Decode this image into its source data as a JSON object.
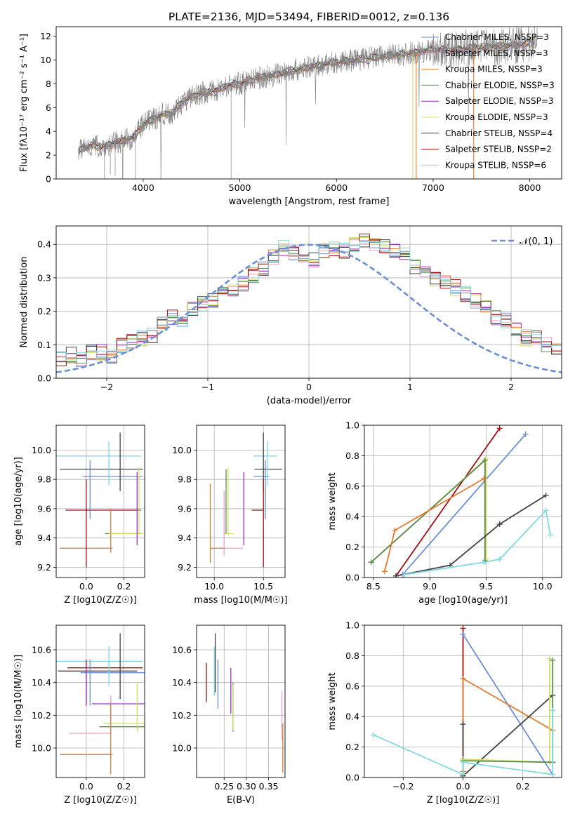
{
  "figure": {
    "title": "PLATE=2136, MJD=53494, FIBERID=0012, z=0.136"
  },
  "colors": {
    "Chabrier MILES": "#6a8fd6",
    "Salpeter MILES": "#e8a0c8",
    "Kroupa MILES": "#e07b30",
    "Chabrier ELODIE": "#5a8a50",
    "Salpeter ELODIE": "#9b30c0",
    "Kroupa ELODIE": "#d4e060",
    "Chabrier STELIB": "#444444",
    "Salpeter STELIB": "#a01010",
    "Kroupa STELIB": "#80d8e0",
    "data": "#808080",
    "normal": "#6a8fd6"
  },
  "chart_data": [
    {
      "id": "spectrum",
      "type": "line",
      "xlabel": "wavelength [Angstrom, rest frame]",
      "ylabel": "Flux [fλ10⁻¹⁷ erg cm⁻² s⁻¹ A⁻¹]",
      "xlim": [
        3100,
        8330
      ],
      "ylim": [
        0,
        12.8
      ],
      "xticks": [
        4000,
        5000,
        6000,
        7000,
        8000
      ],
      "yticks": [
        0,
        2,
        4,
        6,
        8,
        10,
        12
      ],
      "grid": false,
      "legend_position": "right",
      "legend": [
        "Chabrier MILES, NSSP=3",
        "Salpeter MILES, NSSP=3",
        "Kroupa MILES, NSSP=3",
        "Chabrier ELODIE, NSSP=3",
        "Salpeter ELODIE, NSSP=3",
        "Kroupa ELODIE, NSSP=3",
        "Chabrier STELIB, NSSP=4",
        "Salpeter STELIB, NSSP=2",
        "Kroupa STELIB, NSSP=6"
      ],
      "continuum": {
        "x": [
          3330,
          3450,
          3600,
          3700,
          3800,
          3900,
          4000,
          4100,
          4200,
          4300,
          4400,
          4500,
          4600,
          4700,
          4800,
          4900,
          5000,
          5200,
          5400,
          5600,
          5800,
          6000,
          6200,
          6400,
          6600,
          6800,
          7000,
          7200,
          7400,
          7600,
          7800,
          8000,
          8050
        ],
        "y": [
          2.4,
          2.8,
          2.7,
          3.0,
          3.2,
          3.5,
          4.5,
          5.0,
          5.4,
          5.6,
          6.4,
          6.9,
          7.2,
          7.3,
          7.6,
          7.9,
          8.0,
          8.5,
          8.8,
          9.2,
          9.5,
          9.8,
          10.0,
          10.2,
          10.4,
          10.6,
          10.9,
          10.8,
          11.0,
          11.1,
          11.2,
          11.4,
          11.5
        ]
      }
    },
    {
      "id": "residuals",
      "type": "line",
      "xlabel": "(data-model)/error",
      "ylabel": "Normed distribution",
      "xlim": [
        -2.5,
        2.5
      ],
      "ylim": [
        0,
        0.455
      ],
      "xticks": [
        -2,
        -1,
        0,
        1,
        2
      ],
      "yticks": [
        0.0,
        0.1,
        0.2,
        0.3,
        0.4
      ],
      "grid": true,
      "legend": [
        "𝒩(0, 1)"
      ],
      "legend_position": "top-right",
      "histogram": {
        "bin_width": 0.1,
        "bin_start": -2.5,
        "base_profile": [
          0.06,
          0.07,
          0.06,
          0.08,
          0.08,
          0.07,
          0.1,
          0.11,
          0.12,
          0.13,
          0.16,
          0.18,
          0.17,
          0.21,
          0.22,
          0.23,
          0.25,
          0.26,
          0.28,
          0.31,
          0.33,
          0.36,
          0.39,
          0.37,
          0.36,
          0.35,
          0.38,
          0.39,
          0.38,
          0.4,
          0.41,
          0.4,
          0.39,
          0.38,
          0.37,
          0.33,
          0.32,
          0.3,
          0.29,
          0.27,
          0.25,
          0.23,
          0.21,
          0.18,
          0.17,
          0.15,
          0.12,
          0.12,
          0.1,
          0.09
        ]
      }
    },
    {
      "id": "age-Z",
      "type": "scatter",
      "xlabel": "Z [log10(Z/Z☉)]",
      "ylabel": "age [log10(age/yr)]",
      "xlim": [
        -0.16,
        0.31
      ],
      "ylim": [
        9.13,
        10.17
      ],
      "xticks": [
        0.0,
        0.2
      ],
      "xticklabels": [
        "0.0",
        "0.2"
      ],
      "yticks": [
        9.2,
        9.4,
        9.6,
        9.8,
        10.0
      ],
      "grid": true,
      "errorbars": [
        {
          "model": "Kroupa STELIB",
          "x": 0.05,
          "xerr": 0.24,
          "y": 9.96,
          "yerr": 0.0
        },
        {
          "model": "Chabrier STELIB",
          "x": 0.08,
          "xerr": 0.22,
          "y": 9.87,
          "yerr": 0.0
        },
        {
          "model": "Chabrier MILES",
          "x": 0.14,
          "xerr": 0.16,
          "y": 9.82,
          "yerr": 0.0
        },
        {
          "model": "Salpeter STELIB",
          "x": 0.09,
          "xerr": 0.2,
          "y": 9.59,
          "yerr": 0.0
        },
        {
          "model": "Chabrier ELODIE",
          "x": 0.2,
          "xerr": 0.1,
          "y": 9.43,
          "yerr": 0.0
        },
        {
          "model": "Kroupa ELODIE",
          "x": 0.21,
          "xerr": 0.09,
          "y": 9.43,
          "yerr": 0.0
        },
        {
          "model": "Kroupa MILES",
          "x": 0.0,
          "xerr": 0.14,
          "y": 9.33,
          "yerr": 0.0
        },
        {
          "model": "Kroupa STELIB",
          "x": 0.12,
          "xerr": 0.0,
          "y": 9.91,
          "yerr": 0.15
        },
        {
          "model": "Chabrier STELIB",
          "x": 0.18,
          "xerr": 0.0,
          "y": 9.92,
          "yerr": 0.2
        },
        {
          "model": "Chabrier MILES",
          "x": 0.02,
          "xerr": 0.0,
          "y": 9.73,
          "yerr": 0.2
        },
        {
          "model": "Salpeter STELIB",
          "x": 0.0,
          "xerr": 0.0,
          "y": 9.5,
          "yerr": 0.3
        },
        {
          "model": "Kroupa MILES",
          "x": 0.13,
          "xerr": 0.0,
          "y": 9.45,
          "yerr": 0.15
        },
        {
          "model": "Salpeter ELODIE",
          "x": 0.27,
          "xerr": 0.0,
          "y": 9.6,
          "yerr": 0.25
        },
        {
          "model": "Kroupa ELODIE",
          "x": 0.28,
          "xerr": 0.0,
          "y": 9.65,
          "yerr": 0.23
        }
      ]
    },
    {
      "id": "age-mass",
      "type": "scatter",
      "xlabel": "mass [log10(M/M☉)]",
      "ylabel": "",
      "xlim": [
        9.82,
        10.72
      ],
      "ylim": [
        9.13,
        10.17
      ],
      "xticks": [
        10.0,
        10.5
      ],
      "xticklabels": [
        "10.0",
        "10.5"
      ],
      "yticks": [
        9.2,
        9.4,
        9.6,
        9.8,
        10.0
      ],
      "grid": true,
      "errorbars": [
        {
          "model": "Kroupa STELIB",
          "x": 10.52,
          "xerr": 0.12,
          "y": 9.96,
          "yerr": 0.0
        },
        {
          "model": "Chabrier STELIB",
          "x": 10.55,
          "xerr": 0.14,
          "y": 9.87,
          "yerr": 0.0
        },
        {
          "model": "Chabrier MILES",
          "x": 10.48,
          "xerr": 0.08,
          "y": 9.82,
          "yerr": 0.0
        },
        {
          "model": "Salpeter STELIB",
          "x": 10.44,
          "xerr": 0.06,
          "y": 9.59,
          "yerr": 0.0
        },
        {
          "model": "Kroupa ELODIE",
          "x": 10.15,
          "xerr": 0.05,
          "y": 9.43,
          "yerr": 0.0
        },
        {
          "model": "Kroupa MILES",
          "x": 10.04,
          "xerr": 0.08,
          "y": 9.33,
          "yerr": 0.0
        },
        {
          "model": "Salpeter MILES",
          "x": 10.2,
          "xerr": 0.09,
          "y": 9.33,
          "yerr": 0.0
        },
        {
          "model": "Kroupa STELIB",
          "x": 10.54,
          "xerr": 0.0,
          "y": 9.91,
          "yerr": 0.15
        },
        {
          "model": "Chabrier STELIB",
          "x": 10.5,
          "xerr": 0.0,
          "y": 9.92,
          "yerr": 0.2
        },
        {
          "model": "Chabrier MILES",
          "x": 10.52,
          "xerr": 0.0,
          "y": 9.73,
          "yerr": 0.2
        },
        {
          "model": "Salpeter STELIB",
          "x": 10.5,
          "xerr": 0.0,
          "y": 9.5,
          "yerr": 0.3
        },
        {
          "model": "Kroupa MILES",
          "x": 9.96,
          "xerr": 0.0,
          "y": 9.5,
          "yerr": 0.27
        },
        {
          "model": "Salpeter MILES",
          "x": 10.1,
          "xerr": 0.0,
          "y": 9.5,
          "yerr": 0.22
        },
        {
          "model": "Salpeter ELODIE",
          "x": 10.3,
          "xerr": 0.0,
          "y": 9.6,
          "yerr": 0.25
        },
        {
          "model": "Kroupa ELODIE",
          "x": 10.14,
          "xerr": 0.0,
          "y": 9.65,
          "yerr": 0.23
        },
        {
          "model": "Chabrier ELODIE",
          "x": 10.12,
          "xerr": 0.0,
          "y": 9.65,
          "yerr": 0.22
        }
      ]
    },
    {
      "id": "weight-age",
      "type": "line",
      "xlabel": "age [log10(age/yr)]",
      "ylabel": "mass weight",
      "xlim": [
        8.42,
        10.17
      ],
      "ylim": [
        0,
        1.0
      ],
      "xticks": [
        8.5,
        9.0,
        9.5,
        10.0
      ],
      "xticklabels": [
        "8.5",
        "9.0",
        "9.5",
        "10.0"
      ],
      "yticks": [
        0.0,
        0.2,
        0.4,
        0.6,
        0.8,
        1.0
      ],
      "grid": true,
      "series": [
        {
          "model": "Salpeter STELIB",
          "x": [
            8.7,
            9.62
          ],
          "y": [
            0.01,
            0.98
          ]
        },
        {
          "model": "Chabrier MILES",
          "x": [
            8.76,
            9.85
          ],
          "y": [
            0.02,
            0.94
          ]
        },
        {
          "model": "Kroupa ELODIE",
          "x": [
            8.48,
            9.5,
            9.5
          ],
          "y": [
            0.1,
            0.78,
            0.12
          ]
        },
        {
          "model": "Chabrier ELODIE",
          "x": [
            8.48,
            9.49,
            9.49
          ],
          "y": [
            0.1,
            0.77,
            0.11
          ]
        },
        {
          "model": "Kroupa MILES",
          "x": [
            8.6,
            8.69,
            9.48
          ],
          "y": [
            0.04,
            0.31,
            0.65
          ]
        },
        {
          "model": "Chabrier STELIB",
          "x": [
            8.7,
            9.18,
            9.62,
            10.03
          ],
          "y": [
            0.01,
            0.08,
            0.35,
            0.54
          ]
        },
        {
          "model": "Kroupa STELIB",
          "x": [
            8.78,
            9.48,
            9.62,
            10.03,
            10.07
          ],
          "y": [
            0.02,
            0.1,
            0.12,
            0.44,
            0.28
          ]
        }
      ]
    },
    {
      "id": "mass-Z",
      "type": "scatter",
      "xlabel": "Z [log10(Z/Z☉)]",
      "ylabel": "mass [log10(M/M☉)]",
      "xlim": [
        -0.16,
        0.31
      ],
      "ylim": [
        9.82,
        10.75
      ],
      "xticks": [
        0.0,
        0.2
      ],
      "xticklabels": [
        "0.0",
        "0.2"
      ],
      "yticks": [
        10.0,
        10.2,
        10.4,
        10.6
      ],
      "grid": true,
      "errorbars": [
        {
          "model": "Kroupa STELIB",
          "x": 0.05,
          "xerr": 0.25,
          "y": 10.53,
          "yerr": 0.0
        },
        {
          "model": "Salpeter STELIB",
          "x": 0.1,
          "xerr": 0.2,
          "y": 10.49,
          "yerr": 0.0
        },
        {
          "model": "Chabrier STELIB",
          "x": 0.06,
          "xerr": 0.21,
          "y": 10.47,
          "yerr": 0.0
        },
        {
          "model": "Chabrier MILES",
          "x": 0.14,
          "xerr": 0.17,
          "y": 10.46,
          "yerr": 0.0
        },
        {
          "model": "Salpeter ELODIE",
          "x": 0.17,
          "xerr": 0.14,
          "y": 10.27,
          "yerr": 0.0
        },
        {
          "model": "Kroupa ELODIE",
          "x": 0.2,
          "xerr": 0.11,
          "y": 10.15,
          "yerr": 0.0
        },
        {
          "model": "Chabrier ELODIE",
          "x": 0.19,
          "xerr": 0.12,
          "y": 10.13,
          "yerr": 0.0
        },
        {
          "model": "Salpeter MILES",
          "x": 0.02,
          "xerr": 0.11,
          "y": 10.09,
          "yerr": 0.0
        },
        {
          "model": "Kroupa MILES",
          "x": 0.0,
          "xerr": 0.14,
          "y": 9.96,
          "yerr": 0.0
        },
        {
          "model": "Kroupa STELIB",
          "x": 0.12,
          "xerr": 0.0,
          "y": 10.5,
          "yerr": 0.12
        },
        {
          "model": "Chabrier STELIB",
          "x": 0.18,
          "xerr": 0.0,
          "y": 10.5,
          "yerr": 0.2
        },
        {
          "model": "Chabrier MILES",
          "x": 0.02,
          "xerr": 0.0,
          "y": 10.4,
          "yerr": 0.14
        },
        {
          "model": "Salpeter STELIB",
          "x": 0.0,
          "xerr": 0.0,
          "y": 10.4,
          "yerr": 0.14
        },
        {
          "model": "Salpeter ELODIE",
          "x": 0.0,
          "xerr": 0.0,
          "y": 10.38,
          "yerr": 0.12
        },
        {
          "model": "Salpeter MILES",
          "x": 0.13,
          "xerr": 0.0,
          "y": 10.2,
          "yerr": 0.12
        },
        {
          "model": "Kroupa MILES",
          "x": 0.13,
          "xerr": 0.0,
          "y": 10.06,
          "yerr": 0.22
        },
        {
          "model": "Kroupa ELODIE",
          "x": 0.27,
          "xerr": 0.0,
          "y": 10.25,
          "yerr": 0.15
        }
      ]
    },
    {
      "id": "mass-ebv",
      "type": "scatter",
      "xlabel": "E(B-V)",
      "ylabel": "",
      "xlim": [
        0.188,
        0.387
      ],
      "ylim": [
        9.82,
        10.75
      ],
      "xticks": [
        0.25,
        0.3,
        0.35
      ],
      "xticklabels": [
        "0.25",
        "0.30",
        "0.35"
      ],
      "yticks": [
        10.0,
        10.2,
        10.4,
        10.6
      ],
      "grid": true,
      "errorbars": [
        {
          "model": "Salpeter STELIB",
          "x": 0.21,
          "xerr": 0.0,
          "y": 10.4,
          "yerr": 0.12
        },
        {
          "model": "Kroupa STELIB",
          "x": 0.228,
          "xerr": 0.0,
          "y": 10.47,
          "yerr": 0.15
        },
        {
          "model": "Chabrier STELIB",
          "x": 0.23,
          "xerr": 0.0,
          "y": 10.52,
          "yerr": 0.18
        },
        {
          "model": "Chabrier MILES",
          "x": 0.236,
          "xerr": 0.0,
          "y": 10.39,
          "yerr": 0.15
        },
        {
          "model": "Salpeter ELODIE",
          "x": 0.265,
          "xerr": 0.0,
          "y": 10.35,
          "yerr": 0.14
        },
        {
          "model": "Chabrier ELODIE",
          "x": 0.27,
          "xerr": 0.0,
          "y": 10.25,
          "yerr": 0.15
        },
        {
          "model": "Kroupa ELODIE",
          "x": 0.27,
          "xerr": 0.0,
          "y": 10.25,
          "yerr": 0.14
        },
        {
          "model": "Salpeter MILES",
          "x": 0.38,
          "xerr": 0.0,
          "y": 10.2,
          "yerr": 0.15
        },
        {
          "model": "Kroupa MILES",
          "x": 0.382,
          "xerr": 0.0,
          "y": 10.0,
          "yerr": 0.15
        }
      ]
    },
    {
      "id": "weight-Z",
      "type": "line",
      "xlabel": "Z [log10(Z/Z☉)]",
      "ylabel": "mass weight",
      "xlim": [
        -0.33,
        0.33
      ],
      "ylim": [
        0,
        1.0
      ],
      "xticks": [
        -0.2,
        0.0,
        0.2
      ],
      "xticklabels": [
        "−0.2",
        "0.0",
        "0.2"
      ],
      "yticks": [
        0.0,
        0.2,
        0.4,
        0.6,
        0.8,
        1.0
      ],
      "grid": true,
      "series": [
        {
          "model": "Salpeter STELIB",
          "x": [
            0.0,
            0.0
          ],
          "y": [
            0.01,
            0.98
          ]
        },
        {
          "model": "Chabrier MILES",
          "x": [
            0.0,
            0.3
          ],
          "y": [
            0.94,
            0.02
          ]
        },
        {
          "model": "Kroupa MILES",
          "x": [
            0.0,
            0.0,
            0.3
          ],
          "y": [
            0.04,
            0.65,
            0.31
          ]
        },
        {
          "model": "Chabrier STELIB",
          "x": [
            0.0,
            0.0,
            0.3
          ],
          "y": [
            0.35,
            0.01,
            0.54
          ]
        },
        {
          "model": "Kroupa ELODIE",
          "x": [
            0.0,
            0.29,
            0.29,
            0.29
          ],
          "y": [
            0.12,
            0.1,
            0.78,
            0.1
          ]
        },
        {
          "model": "Chabrier ELODIE",
          "x": [
            0.0,
            0.3,
            0.3,
            0.3
          ],
          "y": [
            0.11,
            0.1,
            0.77,
            0.1
          ]
        },
        {
          "model": "Kroupa STELIB",
          "x": [
            -0.3,
            0.0,
            0.0,
            0.3,
            0.3
          ],
          "y": [
            0.28,
            0.02,
            0.1,
            0.02,
            0.44
          ]
        }
      ]
    }
  ]
}
